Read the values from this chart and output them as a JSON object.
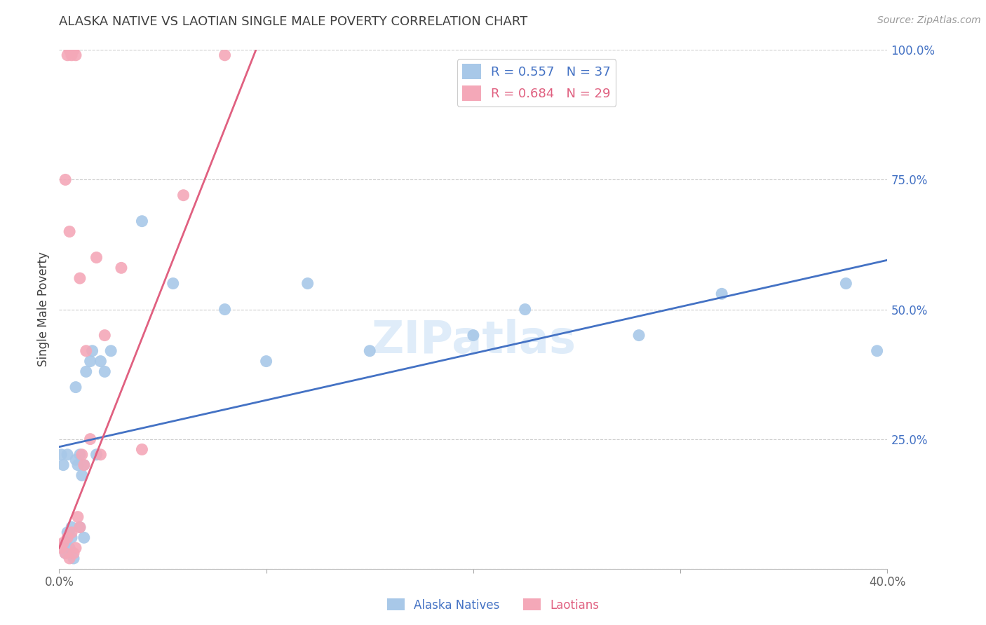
{
  "title": "ALASKA NATIVE VS LAOTIAN SINGLE MALE POVERTY CORRELATION CHART",
  "source": "Source: ZipAtlas.com",
  "ylabel": "Single Male Poverty",
  "watermark": "ZIPatlas",
  "xlim": [
    0.0,
    0.4
  ],
  "ylim": [
    0.0,
    1.0
  ],
  "x_left_label": "0.0%",
  "x_right_label": "40.0%",
  "yticklabels_right": [
    "25.0%",
    "50.0%",
    "75.0%",
    "100.0%"
  ],
  "alaska_color": "#a8c8e8",
  "laotian_color": "#f4a8b8",
  "alaska_line_color": "#4472c4",
  "laotian_line_color": "#e06080",
  "legend_alaska_R": "0.557",
  "legend_alaska_N": "37",
  "legend_laotian_R": "0.684",
  "legend_laotian_N": "29",
  "background_color": "#ffffff",
  "grid_color": "#cccccc",
  "title_color": "#404040",
  "right_tick_color": "#4472c4",
  "alaska_line_x0": 0.0,
  "alaska_line_y0": 0.235,
  "alaska_line_x1": 0.4,
  "alaska_line_y1": 0.595,
  "laotian_line_x0": 0.0,
  "laotian_line_y0": 0.04,
  "laotian_line_x1": 0.095,
  "laotian_line_y1": 1.0,
  "alaska_x": [
    0.001,
    0.002,
    0.003,
    0.004,
    0.005,
    0.006,
    0.007,
    0.008,
    0.009,
    0.01,
    0.011,
    0.012,
    0.013,
    0.015,
    0.016,
    0.018,
    0.02,
    0.022,
    0.025,
    0.04,
    0.055,
    0.08,
    0.1,
    0.12,
    0.15,
    0.2,
    0.225,
    0.28,
    0.32,
    0.38,
    0.395,
    0.003,
    0.004,
    0.006,
    0.008,
    0.01,
    0.012
  ],
  "alaska_y": [
    0.22,
    0.2,
    0.05,
    0.07,
    0.04,
    0.06,
    0.02,
    0.21,
    0.2,
    0.22,
    0.18,
    0.2,
    0.38,
    0.4,
    0.42,
    0.22,
    0.4,
    0.38,
    0.42,
    0.67,
    0.55,
    0.5,
    0.4,
    0.55,
    0.42,
    0.45,
    0.5,
    0.45,
    0.53,
    0.55,
    0.42,
    0.03,
    0.22,
    0.08,
    0.35,
    0.08,
    0.06
  ],
  "laotian_x": [
    0.001,
    0.002,
    0.003,
    0.004,
    0.005,
    0.006,
    0.007,
    0.008,
    0.009,
    0.01,
    0.011,
    0.012,
    0.013,
    0.015,
    0.018,
    0.02,
    0.004,
    0.005,
    0.006,
    0.007,
    0.008,
    0.022,
    0.03,
    0.04,
    0.06,
    0.08,
    0.003,
    0.005,
    0.01
  ],
  "laotian_y": [
    0.04,
    0.05,
    0.03,
    0.06,
    0.02,
    0.07,
    0.03,
    0.04,
    0.1,
    0.08,
    0.22,
    0.2,
    0.42,
    0.25,
    0.6,
    0.22,
    0.99,
    1.0,
    0.99,
    1.0,
    0.99,
    0.45,
    0.58,
    0.23,
    0.72,
    0.99,
    0.75,
    0.65,
    0.56
  ]
}
